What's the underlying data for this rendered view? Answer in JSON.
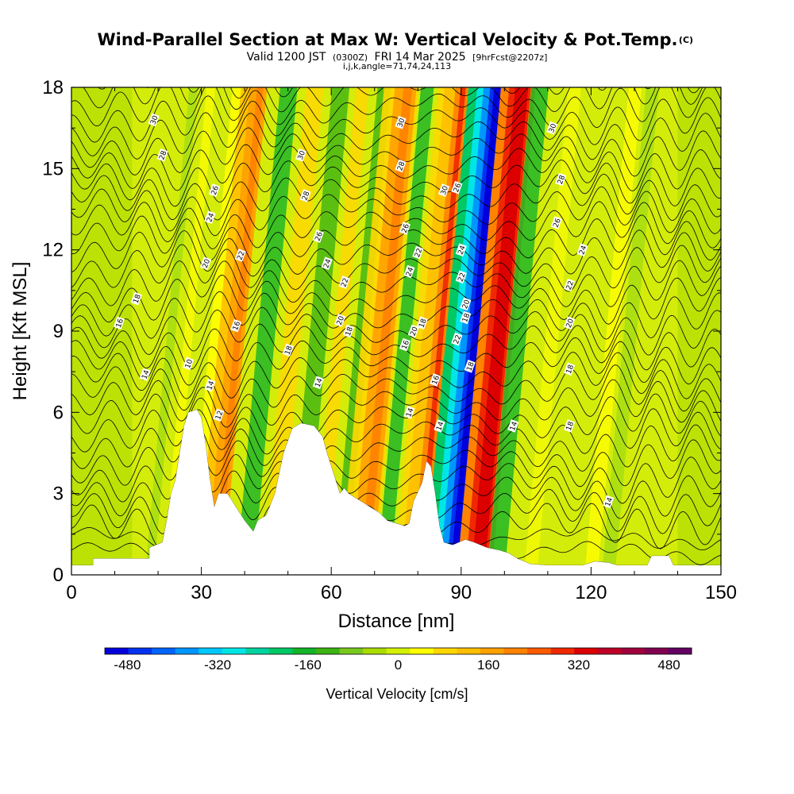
{
  "header": {
    "title_main": "Wind-Parallel Section at Max W: Vertical Velocity & Pot.Temp.",
    "copyright": "(C)",
    "valid_prefix": "Valid 1200 JST",
    "valid_utc": "(0300Z)",
    "valid_date": "FRI 14 Mar 2025",
    "forecast_info": "[9hrFcst@2207z]",
    "section_params": "i,j,k,angle=71,74,24,113"
  },
  "chart_data": {
    "type": "heatmap",
    "xlabel": "Distance [nm]",
    "ylabel": "Height [Kft MSL]",
    "xlim": [
      0,
      150
    ],
    "ylim": [
      0,
      18
    ],
    "x_ticks": [
      0,
      30,
      60,
      90,
      120,
      150
    ],
    "y_ticks": [
      0,
      3,
      6,
      9,
      12,
      15,
      18
    ],
    "x_tick_labels": [
      "0",
      "30",
      "60",
      "90",
      "120",
      "150"
    ],
    "y_tick_labels": [
      "0",
      "3",
      "6",
      "9",
      "12",
      "15",
      "18"
    ],
    "colorbar": {
      "title": "Vertical Velocity [cm/s]",
      "range": [
        -520,
        520
      ],
      "ticks": [
        -480,
        -320,
        -160,
        0,
        160,
        320,
        480
      ],
      "tick_labels": [
        "-480",
        "-320",
        "-160",
        "0",
        "160",
        "320",
        "480"
      ],
      "colors": [
        "#0000dc",
        "#0032f0",
        "#0064ff",
        "#0096ff",
        "#00c8ff",
        "#00e6e6",
        "#00d2a0",
        "#00c864",
        "#14b428",
        "#3cb414",
        "#78c81e",
        "#aadc00",
        "#d2f000",
        "#ffff00",
        "#ffd700",
        "#ffbe00",
        "#ffa000",
        "#ff8200",
        "#ff5a00",
        "#f02800",
        "#dc0000",
        "#be0028",
        "#a0003c",
        "#820050",
        "#640064"
      ]
    },
    "terrain": [
      [
        0,
        0.35
      ],
      [
        5,
        0.35
      ],
      [
        5,
        0.6
      ],
      [
        18,
        0.6
      ],
      [
        18,
        1.0
      ],
      [
        21,
        1.2
      ],
      [
        22,
        2.0
      ],
      [
        23,
        3.0
      ],
      [
        24,
        3.5
      ],
      [
        25,
        4.5
      ],
      [
        26,
        5.5
      ],
      [
        27,
        6.0
      ],
      [
        29,
        6.1
      ],
      [
        30,
        5.8
      ],
      [
        31,
        4.8
      ],
      [
        32,
        3.5
      ],
      [
        33,
        2.5
      ],
      [
        34,
        3.0
      ],
      [
        36,
        3.0
      ],
      [
        38,
        2.5
      ],
      [
        40,
        2.0
      ],
      [
        41,
        1.8
      ],
      [
        42,
        1.6
      ],
      [
        43,
        2.0
      ],
      [
        45,
        2.2
      ],
      [
        47,
        3.0
      ],
      [
        49,
        4.5
      ],
      [
        51,
        5.4
      ],
      [
        53,
        5.6
      ],
      [
        56,
        5.5
      ],
      [
        58,
        5.1
      ],
      [
        59,
        4.5
      ],
      [
        60,
        4.0
      ],
      [
        61,
        3.5
      ],
      [
        62,
        3.0
      ],
      [
        63,
        3.2
      ],
      [
        64,
        3.0
      ],
      [
        65,
        2.9
      ],
      [
        68,
        2.6
      ],
      [
        71,
        2.3
      ],
      [
        73,
        2.0
      ],
      [
        75,
        1.9
      ],
      [
        77,
        1.8
      ],
      [
        78,
        1.9
      ],
      [
        79,
        2.7
      ],
      [
        81,
        3.4
      ],
      [
        82,
        4.2
      ],
      [
        83,
        4.0
      ],
      [
        84,
        3.0
      ],
      [
        85,
        1.8
      ],
      [
        86,
        1.2
      ],
      [
        88,
        1.1
      ],
      [
        91,
        1.3
      ],
      [
        93,
        1.2
      ],
      [
        96,
        1.0
      ],
      [
        99,
        0.9
      ],
      [
        101,
        0.8
      ],
      [
        103,
        0.6
      ],
      [
        106,
        0.4
      ],
      [
        110,
        0.35
      ],
      [
        118,
        0.35
      ],
      [
        121,
        0.5
      ],
      [
        124,
        0.45
      ],
      [
        126,
        0.35
      ],
      [
        133,
        0.35
      ],
      [
        134,
        0.7
      ],
      [
        138,
        0.7
      ],
      [
        139,
        0.35
      ],
      [
        150,
        0.35
      ]
    ],
    "contour_labels": [
      "10",
      "12",
      "14",
      "16",
      "18",
      "20",
      "22",
      "24",
      "26",
      "28",
      "30"
    ]
  }
}
